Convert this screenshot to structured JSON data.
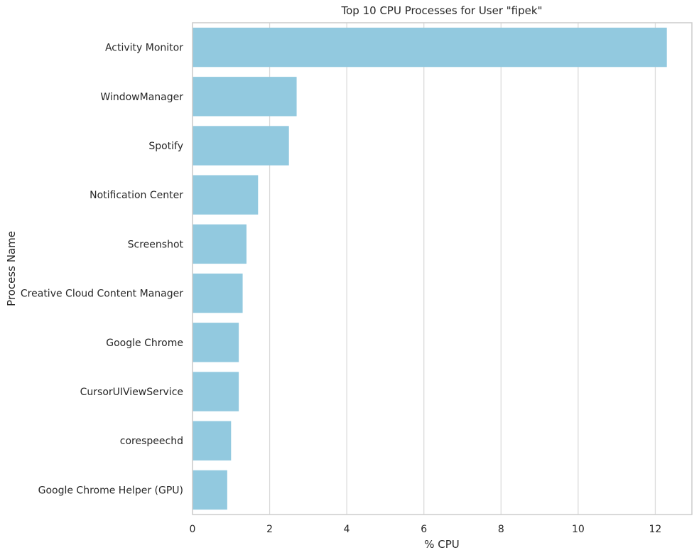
{
  "chart_data": {
    "type": "bar",
    "orientation": "horizontal",
    "title": "Top 10 CPU Processes for User \"fipek\"",
    "xlabel": "% CPU",
    "ylabel": "Process Name",
    "xlim": [
      0,
      12.95
    ],
    "xticks": [
      0,
      2,
      4,
      6,
      8,
      10,
      12
    ],
    "grid": "vertical",
    "categories": [
      "Activity Monitor",
      "WindowManager",
      "Spotify",
      "Notification Center",
      "Screenshot",
      "Creative Cloud Content Manager",
      "Google Chrome",
      "CursorUIViewService",
      "corespeechd",
      "Google Chrome Helper (GPU)"
    ],
    "values": [
      12.3,
      2.7,
      2.5,
      1.7,
      1.4,
      1.3,
      1.2,
      1.2,
      1.0,
      0.9
    ],
    "colors": {
      "bar": "#92c9df",
      "grid": "#dadada",
      "frame": "#cccccc",
      "text": "#262626"
    }
  }
}
